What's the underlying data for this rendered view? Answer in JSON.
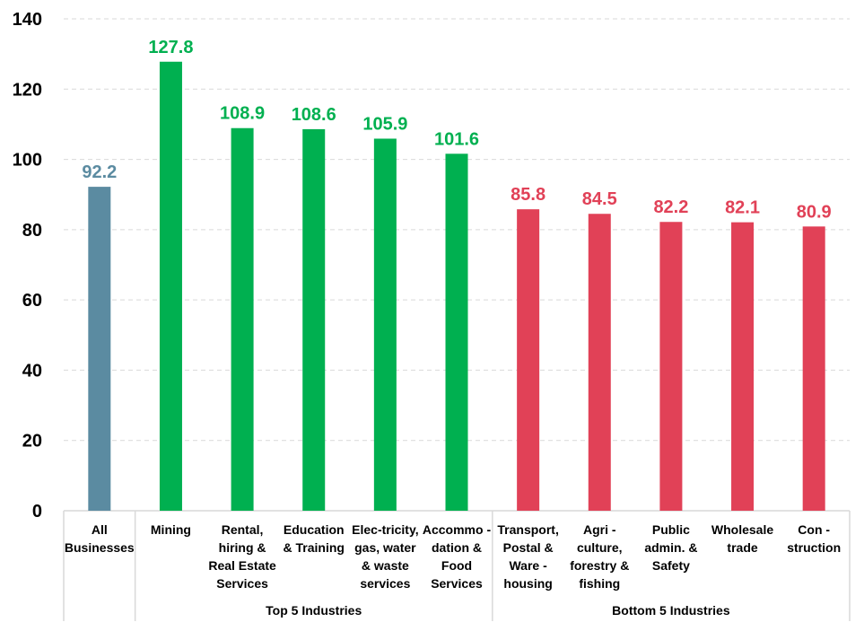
{
  "chart_data": {
    "type": "bar",
    "title": "",
    "xlabel": "",
    "ylabel": "",
    "ylim": [
      0,
      140
    ],
    "yticks": [
      0,
      20,
      40,
      60,
      80,
      100,
      120,
      140
    ],
    "grid": true,
    "categories": [
      {
        "lines": [
          "All",
          "Businesses"
        ],
        "value": 92.2,
        "label": "92.2",
        "group": "all"
      },
      {
        "lines": [
          "Mining"
        ],
        "value": 127.8,
        "label": "127.8",
        "group": "top"
      },
      {
        "lines": [
          "Rental,",
          "hiring &",
          "Real Estate",
          "Services"
        ],
        "value": 108.9,
        "label": "108.9",
        "group": "top"
      },
      {
        "lines": [
          "Education",
          "& Training"
        ],
        "value": 108.6,
        "label": "108.6",
        "group": "top"
      },
      {
        "lines": [
          "Elec-tricity,",
          "gas, water",
          "& waste",
          "services"
        ],
        "value": 105.9,
        "label": "105.9",
        "group": "top"
      },
      {
        "lines": [
          "Accommo -",
          "dation &",
          "Food",
          "Services"
        ],
        "value": 101.6,
        "label": "101.6",
        "group": "top"
      },
      {
        "lines": [
          "Transport,",
          "Postal &",
          "Ware -",
          "housing"
        ],
        "value": 85.8,
        "label": "85.8",
        "group": "bottom"
      },
      {
        "lines": [
          "Agri -",
          "culture,",
          "forestry &",
          "fishing"
        ],
        "value": 84.5,
        "label": "84.5",
        "group": "bottom"
      },
      {
        "lines": [
          "Public",
          "admin. &",
          "Safety"
        ],
        "value": 82.2,
        "label": "82.2",
        "group": "bottom"
      },
      {
        "lines": [
          "Wholesale",
          "trade"
        ],
        "value": 82.1,
        "label": "82.1",
        "group": "bottom"
      },
      {
        "lines": [
          "Con -",
          "struction"
        ],
        "value": 80.9,
        "label": "80.9",
        "group": "bottom"
      }
    ],
    "groups": [
      {
        "id": "top",
        "label": "Top 5 Industries"
      },
      {
        "id": "bottom",
        "label": "Bottom 5 Industries"
      }
    ],
    "colors": {
      "all": "#5b8ba1",
      "top": "#00b050",
      "bottom": "#e14157"
    }
  }
}
